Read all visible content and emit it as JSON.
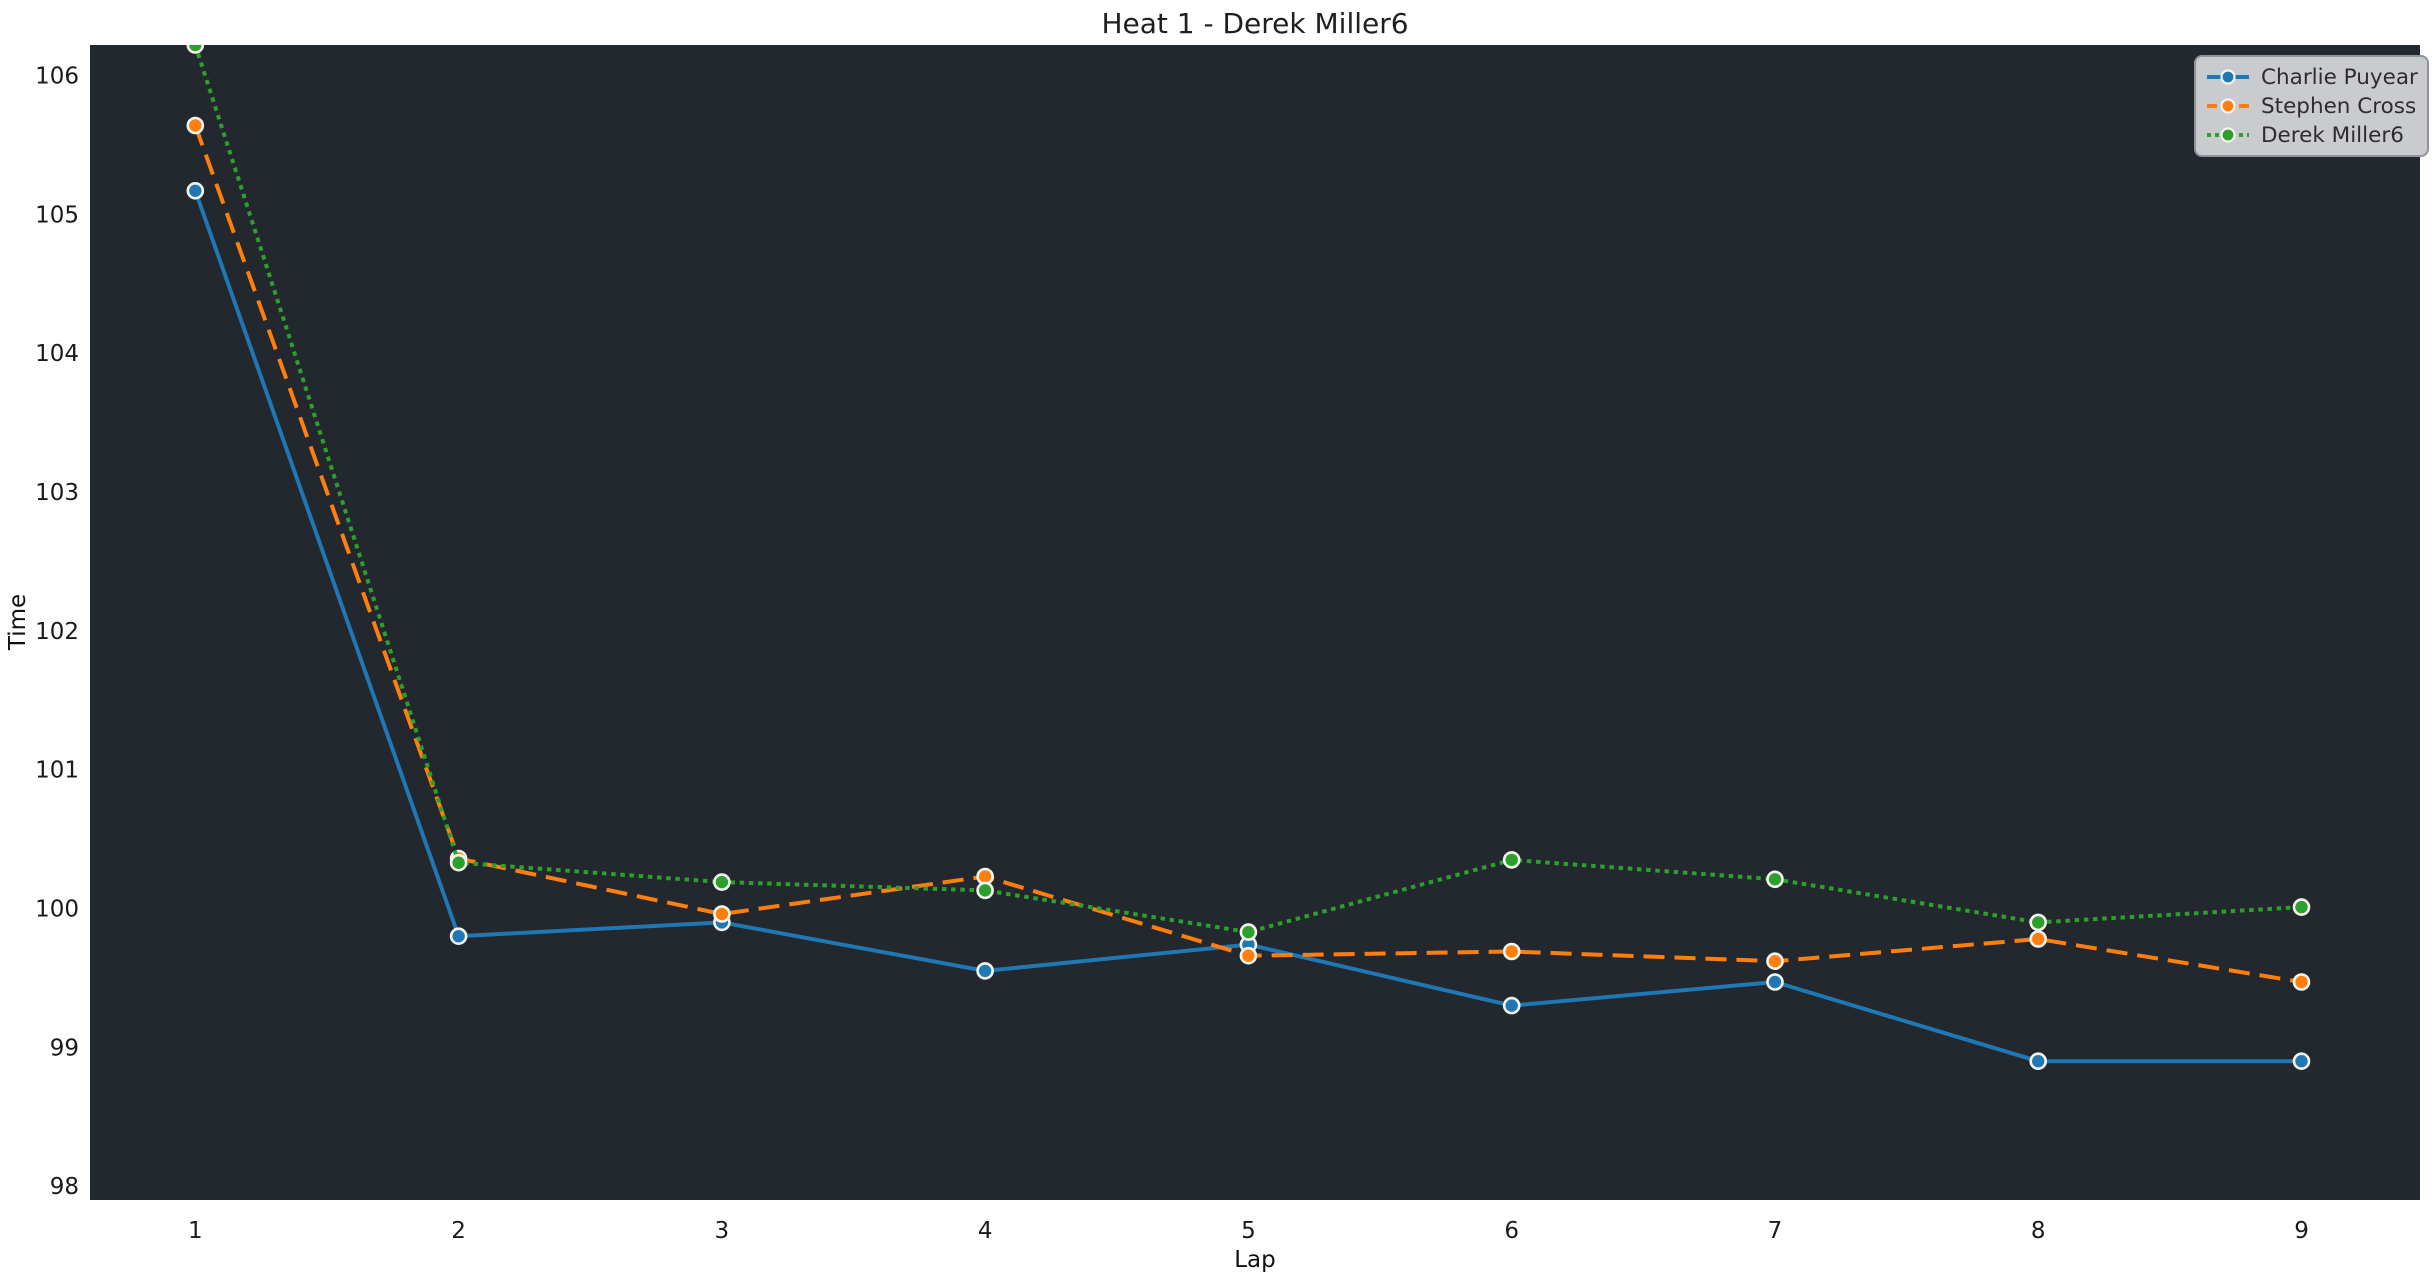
{
  "chart_data": {
    "type": "line",
    "title": "Heat 1 - Derek Miller6",
    "xlabel": "Lap",
    "ylabel": "Time",
    "x": [
      1,
      2,
      3,
      4,
      5,
      6,
      7,
      8,
      9
    ],
    "xticks": [
      "1",
      "2",
      "3",
      "4",
      "5",
      "6",
      "7",
      "8",
      "9"
    ],
    "yticks": [
      "98",
      "99",
      "100",
      "101",
      "102",
      "103",
      "104",
      "105",
      "106"
    ],
    "ytick_values": [
      98,
      99,
      100,
      101,
      102,
      103,
      104,
      105,
      106
    ],
    "xlim": [
      0.6,
      9.45
    ],
    "ylim": [
      97.9,
      106.22
    ],
    "grid": false,
    "legend_position": "upper right",
    "colors": {
      "plot_background": "#23272e",
      "figure_background": "#ffffff",
      "marker_edge": "#f5f5f0",
      "legend_background": "#c9cbce",
      "legend_border": "#90949a",
      "text": "#1a1a1a"
    },
    "series": [
      {
        "name": "Charlie Puyear",
        "color": "#1f77b4",
        "line_style": "solid",
        "values": [
          105.17,
          99.8,
          99.9,
          99.55,
          99.74,
          99.3,
          99.47,
          98.9,
          98.9
        ]
      },
      {
        "name": "Stephen Cross",
        "color": "#ff7f0e",
        "line_style": "dashed",
        "values": [
          105.64,
          100.36,
          99.96,
          100.23,
          99.66,
          99.69,
          99.62,
          99.78,
          99.47
        ]
      },
      {
        "name": "Derek Miller6",
        "color": "#2ca02c",
        "line_style": "dotted",
        "values": [
          106.22,
          100.33,
          100.19,
          100.13,
          99.83,
          100.35,
          100.21,
          99.9,
          100.01
        ]
      }
    ]
  }
}
